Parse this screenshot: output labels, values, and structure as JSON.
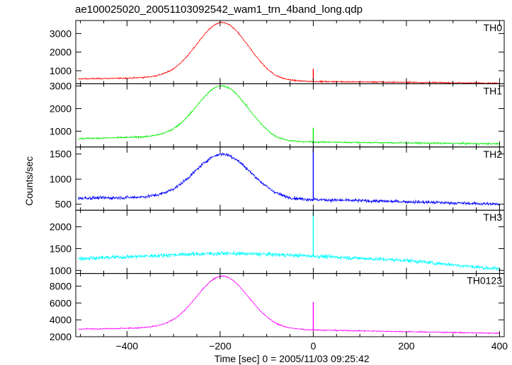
{
  "chart_data": {
    "type": "line",
    "title": "ae100025020_20051103092542_wam1_trn_4band_long.qdp",
    "xlabel": "Time [sec] 0 = 2005/11/03 09:25:42",
    "ylabel": "Counts/sec",
    "xlim": [
      -510,
      410
    ],
    "xticks": [
      -400,
      -200,
      0,
      200,
      400
    ],
    "grid": false,
    "panels": [
      {
        "name": "TH0",
        "color": "#ff0000",
        "ylim": [
          300,
          3700
        ],
        "yticks": [
          1000,
          2000,
          3000
        ],
        "baseline": {
          "x": [
            -510,
            -400,
            -300,
            -200,
            -120,
            -80,
            0,
            200,
            400
          ],
          "y": [
            560,
            600,
            650,
            720,
            560,
            420,
            420,
            380,
            330
          ]
        },
        "peak": {
          "center": -195,
          "amplitude": 2880,
          "sigma": 55
        },
        "noise": 35,
        "spike": {
          "x": 0,
          "y": 1100
        }
      },
      {
        "name": "TH1",
        "color": "#00ee00",
        "ylim": [
          300,
          3100
        ],
        "yticks": [
          1000,
          2000,
          3000
        ],
        "baseline": {
          "x": [
            -510,
            -400,
            -300,
            -200,
            -120,
            -80,
            0,
            200,
            400
          ],
          "y": [
            670,
            720,
            760,
            800,
            640,
            520,
            520,
            480,
            440
          ]
        },
        "peak": {
          "center": -195,
          "amplitude": 2220,
          "sigma": 55
        },
        "noise": 35,
        "spike": {
          "x": 0,
          "y": 1150
        }
      },
      {
        "name": "TH2",
        "color": "#0000ff",
        "ylim": [
          380,
          1640
        ],
        "yticks": [
          500,
          1000,
          1500
        ],
        "baseline": {
          "x": [
            -510,
            -400,
            -300,
            -200,
            -120,
            -60,
            0,
            200,
            400
          ],
          "y": [
            620,
            630,
            650,
            670,
            650,
            600,
            590,
            550,
            500
          ]
        },
        "peak": {
          "center": -195,
          "amplitude": 830,
          "sigma": 58
        },
        "noise": 32,
        "spike": {
          "x": 0,
          "y": 1620
        }
      },
      {
        "name": "TH3",
        "color": "#00ffff",
        "ylim": [
          930,
          2380
        ],
        "yticks": [
          1000,
          1500,
          2000
        ],
        "baseline": {
          "x": [
            -510,
            -400,
            -300,
            -200,
            -100,
            0,
            100,
            200,
            300,
            400
          ],
          "y": [
            1270,
            1310,
            1350,
            1370,
            1360,
            1330,
            1280,
            1230,
            1130,
            1030
          ]
        },
        "peak": {
          "center": -195,
          "amplitude": 20,
          "sigma": 80
        },
        "noise": 45,
        "spike": {
          "x": 0,
          "y": 2380
        }
      },
      {
        "name": "TH0123",
        "color": "#ff00ff",
        "ylim": [
          2000,
          9500
        ],
        "yticks": [
          2000,
          4000,
          6000,
          8000
        ],
        "baseline": {
          "x": [
            -510,
            -400,
            -300,
            -200,
            -120,
            -70,
            0,
            200,
            400
          ],
          "y": [
            2900,
            3000,
            3100,
            3200,
            3100,
            2900,
            2800,
            2600,
            2400
          ]
        },
        "peak": {
          "center": -195,
          "amplitude": 6000,
          "sigma": 55
        },
        "noise": 70,
        "spike": {
          "x": 0,
          "y": 6100
        }
      }
    ]
  }
}
